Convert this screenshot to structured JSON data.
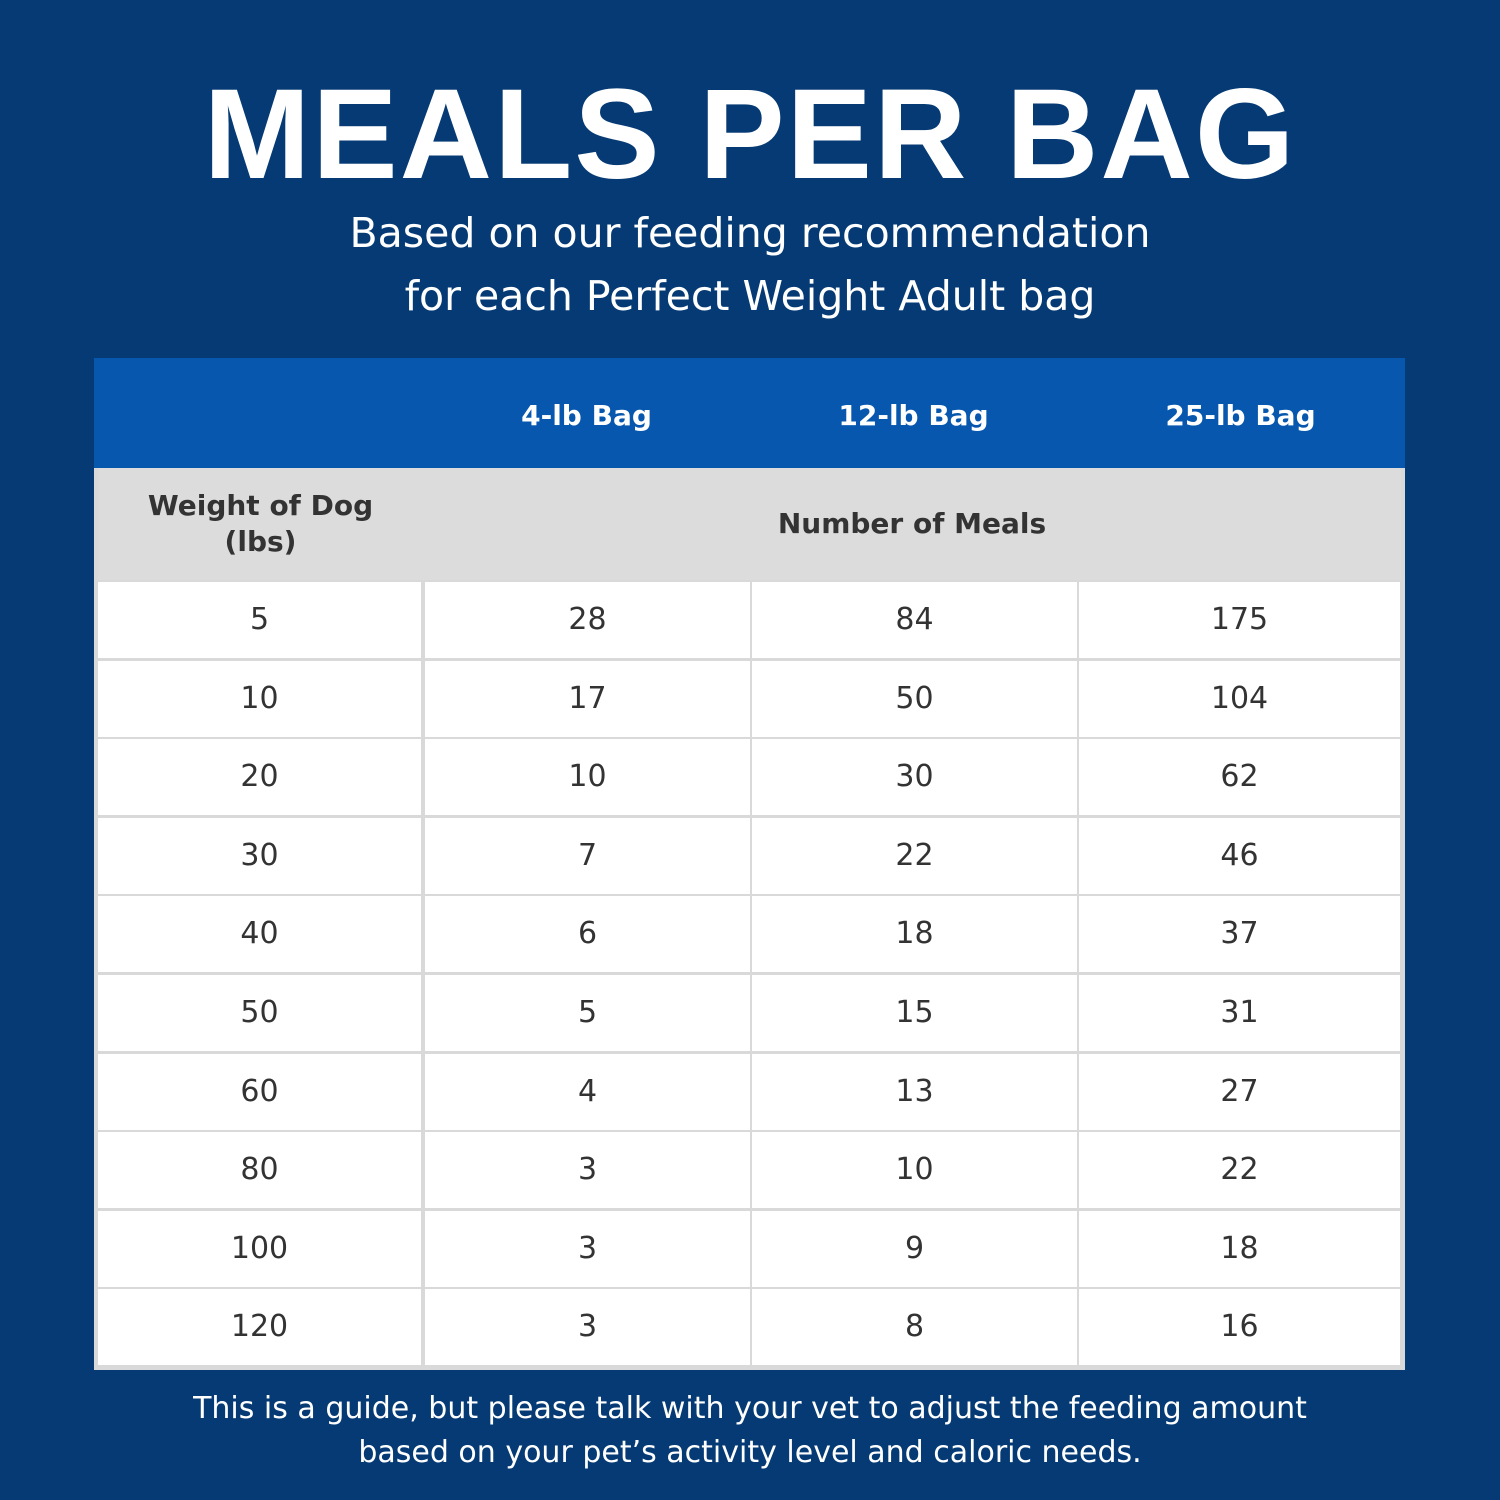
{
  "header": {
    "title": "MEALS PER BAG",
    "subtitle": [
      "Based on our feeding recommendation",
      "for each Perfect Weight Adult bag"
    ]
  },
  "table": {
    "columns": [
      "4-lb Bag",
      "12-lb Bag",
      "25-lb Bag"
    ],
    "row_header": [
      "Weight of Dog",
      "(lbs)"
    ],
    "value_header": "Number of Meals",
    "rows": [
      [
        5,
        28,
        84,
        175
      ],
      [
        10,
        17,
        50,
        104
      ],
      [
        20,
        10,
        30,
        62
      ],
      [
        30,
        7,
        22,
        46
      ],
      [
        40,
        6,
        18,
        37
      ],
      [
        50,
        5,
        15,
        31
      ],
      [
        60,
        4,
        13,
        27
      ],
      [
        80,
        3,
        10,
        22
      ],
      [
        100,
        3,
        9,
        18
      ],
      [
        120,
        3,
        8,
        16
      ]
    ]
  },
  "footer": [
    "This is a guide, but please talk with your vet to adjust the feeding amount",
    "based on your pet’s activity level and caloric needs."
  ]
}
